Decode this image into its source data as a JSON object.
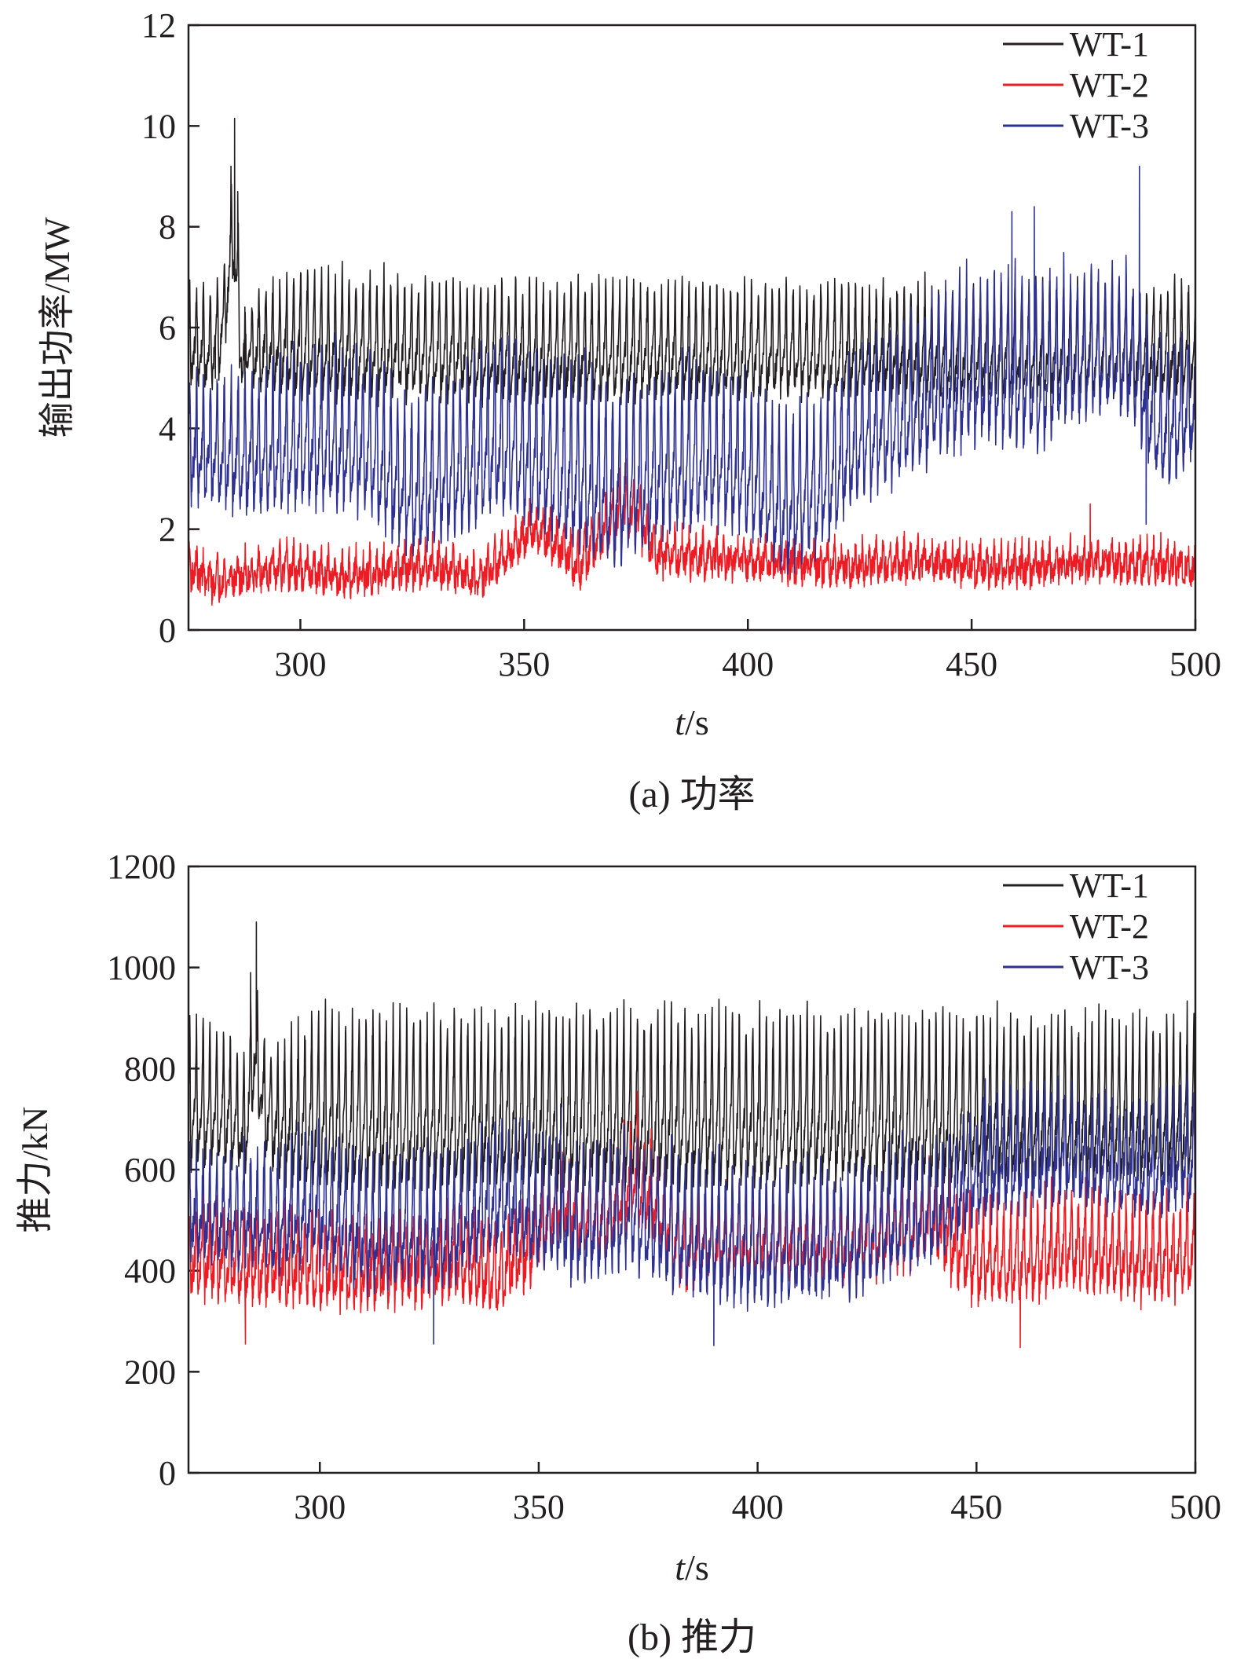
{
  "chart_data": [
    {
      "type": "line",
      "caption": "(a) 功率",
      "ylabel": "输出功率/MW",
      "xlabel_italic": "t",
      "xlabel_unit": "/s",
      "xlim": [
        275,
        500
      ],
      "ylim": [
        0,
        12
      ],
      "xticks": [
        300,
        350,
        400,
        450,
        500
      ],
      "yticks": [
        0,
        2,
        4,
        6,
        8,
        10,
        12
      ],
      "legend_position": "top-right",
      "series": [
        {
          "name": "WT-1",
          "color": "#231f20",
          "base": [
            [
              275,
              5.9
            ],
            [
              280,
              5.8
            ],
            [
              283,
              6.4
            ],
            [
              285,
              8.2
            ],
            [
              287,
              5.6
            ],
            [
              290,
              5.8
            ],
            [
              300,
              6.0
            ],
            [
              310,
              5.9
            ],
            [
              350,
              5.8
            ],
            [
              400,
              5.8
            ],
            [
              450,
              5.8
            ],
            [
              500,
              5.8
            ]
          ],
          "amp": [
            [
              275,
              0.9
            ],
            [
              282,
              1.0
            ],
            [
              284,
              0.8
            ],
            [
              286,
              1.4
            ],
            [
              288,
              0.6
            ],
            [
              290,
              0.9
            ],
            [
              300,
              1.3
            ],
            [
              320,
              1.2
            ],
            [
              400,
              1.1
            ],
            [
              450,
              1.1
            ],
            [
              480,
              1.1
            ],
            [
              500,
              1.1
            ]
          ],
          "period": 1.55,
          "noise": 0.25,
          "spikes": [
            [
              281,
              5.0
            ],
            [
              284.5,
              9.2
            ],
            [
              285.3,
              10.15
            ],
            [
              286,
              8.7
            ],
            [
              287.6,
              4.7
            ]
          ]
        },
        {
          "name": "WT-2",
          "color": "#ed1c24",
          "base": [
            [
              275,
              1.35
            ],
            [
              280,
              1.05
            ],
            [
              295,
              1.3
            ],
            [
              310,
              1.15
            ],
            [
              330,
              1.4
            ],
            [
              340,
              1.1
            ],
            [
              345,
              1.5
            ],
            [
              352,
              2.1
            ],
            [
              358,
              1.8
            ],
            [
              362,
              1.4
            ],
            [
              368,
              2.1
            ],
            [
              372,
              2.5
            ],
            [
              375,
              2.4
            ],
            [
              380,
              1.6
            ],
            [
              390,
              1.55
            ],
            [
              400,
              1.45
            ],
            [
              420,
              1.35
            ],
            [
              440,
              1.45
            ],
            [
              460,
              1.3
            ],
            [
              480,
              1.45
            ],
            [
              500,
              1.35
            ]
          ],
          "amp": [
            [
              275,
              0.3
            ],
            [
              350,
              0.35
            ],
            [
              372,
              0.6
            ],
            [
              380,
              0.4
            ],
            [
              400,
              0.3
            ],
            [
              500,
              0.3
            ]
          ],
          "period": 1.55,
          "noise": 0.28,
          "spikes": [
            [
              373,
              3.4
            ],
            [
              476.5,
              2.5
            ]
          ]
        },
        {
          "name": "WT-3",
          "color": "#2e3192",
          "base": [
            [
              275,
              3.9
            ],
            [
              290,
              3.8
            ],
            [
              300,
              4.1
            ],
            [
              315,
              4.0
            ],
            [
              325,
              3.1
            ],
            [
              335,
              3.6
            ],
            [
              345,
              4.2
            ],
            [
              350,
              4.0
            ],
            [
              360,
              3.6
            ],
            [
              370,
              3.2
            ],
            [
              380,
              3.6
            ],
            [
              390,
              3.8
            ],
            [
              400,
              3.6
            ],
            [
              408,
              2.8
            ],
            [
              415,
              3.2
            ],
            [
              425,
              4.2
            ],
            [
              435,
              4.6
            ],
            [
              445,
              5.3
            ],
            [
              455,
              5.6
            ],
            [
              465,
              5.4
            ],
            [
              475,
              5.8
            ],
            [
              485,
              5.8
            ],
            [
              492,
              4.3
            ],
            [
              500,
              4.8
            ]
          ],
          "amp": [
            [
              275,
              1.2
            ],
            [
              300,
              1.5
            ],
            [
              330,
              1.6
            ],
            [
              360,
              1.9
            ],
            [
              380,
              1.7
            ],
            [
              400,
              1.6
            ],
            [
              430,
              1.5
            ],
            [
              460,
              1.7
            ],
            [
              480,
              1.4
            ],
            [
              500,
              1.3
            ]
          ],
          "period": 1.55,
          "noise": 0.35,
          "spikes": [
            [
              459,
              8.3
            ],
            [
              464,
              8.4
            ],
            [
              487.5,
              9.2
            ],
            [
              489,
              2.1
            ]
          ]
        }
      ]
    },
    {
      "type": "line",
      "caption": "(b) 推力",
      "ylabel": "推力/kN",
      "xlabel_italic": "t",
      "xlabel_unit": "/s",
      "xlim": [
        270,
        500
      ],
      "ylim": [
        0,
        1200
      ],
      "xticks": [
        300,
        350,
        400,
        450,
        500
      ],
      "yticks": [
        0,
        200,
        400,
        600,
        800,
        1000,
        1200
      ],
      "legend_position": "top-right",
      "series": [
        {
          "name": "WT-1",
          "color": "#231f20",
          "base": [
            [
              270,
              760
            ],
            [
              280,
              740
            ],
            [
              283,
              700
            ],
            [
              285,
              870
            ],
            [
              287,
              760
            ],
            [
              290,
              720
            ],
            [
              300,
              745
            ],
            [
              320,
              745
            ],
            [
              400,
              745
            ],
            [
              450,
              745
            ],
            [
              500,
              745
            ]
          ],
          "amp": [
            [
              270,
              150
            ],
            [
              282,
              120
            ],
            [
              286,
              110
            ],
            [
              289,
              120
            ],
            [
              300,
              180
            ],
            [
              320,
              175
            ],
            [
              400,
              170
            ],
            [
              500,
              165
            ]
          ],
          "period": 1.55,
          "noise": 28,
          "spikes": [
            [
              282.3,
              635
            ],
            [
              285.5,
              1090
            ],
            [
              284.2,
              990
            ],
            [
              287.6,
              625
            ]
          ]
        },
        {
          "name": "WT-2",
          "color": "#ed1c24",
          "base": [
            [
              270,
              450
            ],
            [
              290,
              430
            ],
            [
              310,
              420
            ],
            [
              330,
              440
            ],
            [
              340,
              410
            ],
            [
              348,
              470
            ],
            [
              355,
              560
            ],
            [
              360,
              530
            ],
            [
              365,
              520
            ],
            [
              372,
              615
            ],
            [
              376,
              570
            ],
            [
              383,
              460
            ],
            [
              390,
              470
            ],
            [
              400,
              480
            ],
            [
              420,
              470
            ],
            [
              440,
              520
            ],
            [
              450,
              440
            ],
            [
              460,
              445
            ],
            [
              470,
              470
            ],
            [
              480,
              460
            ],
            [
              490,
              450
            ],
            [
              500,
              460
            ]
          ],
          "amp": [
            [
              270,
              85
            ],
            [
              350,
              80
            ],
            [
              372,
              95
            ],
            [
              400,
              75
            ],
            [
              450,
              95
            ],
            [
              500,
              95
            ]
          ],
          "period": 1.55,
          "noise": 35,
          "spikes": [
            [
              372.5,
              755
            ],
            [
              283,
              255
            ],
            [
              460,
              248
            ]
          ]
        },
        {
          "name": "WT-3",
          "color": "#2e3192",
          "base": [
            [
              270,
              540
            ],
            [
              290,
              530
            ],
            [
              300,
              560
            ],
            [
              310,
              510
            ],
            [
              330,
              510
            ],
            [
              340,
              580
            ],
            [
              350,
              540
            ],
            [
              360,
              520
            ],
            [
              370,
              545
            ],
            [
              380,
              510
            ],
            [
              390,
              490
            ],
            [
              400,
              480
            ],
            [
              420,
              480
            ],
            [
              430,
              520
            ],
            [
              440,
              545
            ],
            [
              450,
              620
            ],
            [
              460,
              650
            ],
            [
              470,
              660
            ],
            [
              480,
              640
            ],
            [
              490,
              630
            ],
            [
              500,
              650
            ]
          ],
          "amp": [
            [
              270,
              95
            ],
            [
              300,
              130
            ],
            [
              350,
              120
            ],
            [
              400,
              130
            ],
            [
              450,
              110
            ],
            [
              500,
              110
            ]
          ],
          "period": 1.55,
          "noise": 38,
          "spikes": [
            [
              326,
              255
            ],
            [
              390,
              252
            ],
            [
              355,
              730
            ],
            [
              452,
              780
            ]
          ]
        }
      ]
    }
  ]
}
